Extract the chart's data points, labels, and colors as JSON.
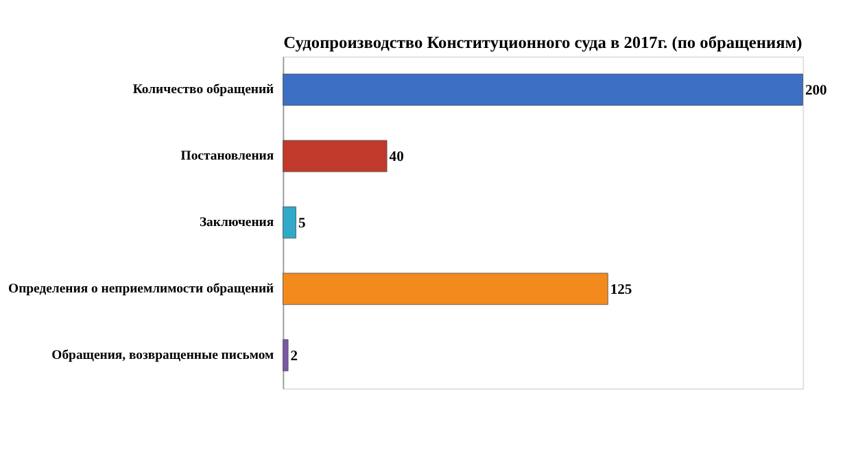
{
  "chart_data": {
    "type": "bar",
    "orientation": "horizontal",
    "title": "Судопроизводство Конституционного суда в 2017г. (по обращениям)",
    "categories": [
      "Количество обращений",
      "Постановления",
      "Заключения",
      "Определения о неприемлимости обращений",
      "Обращения, возвращенные письмом"
    ],
    "values": [
      200,
      40,
      5,
      125,
      2
    ],
    "colors": [
      "#3a6fc4",
      "#c0392b",
      "#31a9c9",
      "#f28a1e",
      "#7a57a5"
    ],
    "data_labels": true,
    "grid": false
  }
}
